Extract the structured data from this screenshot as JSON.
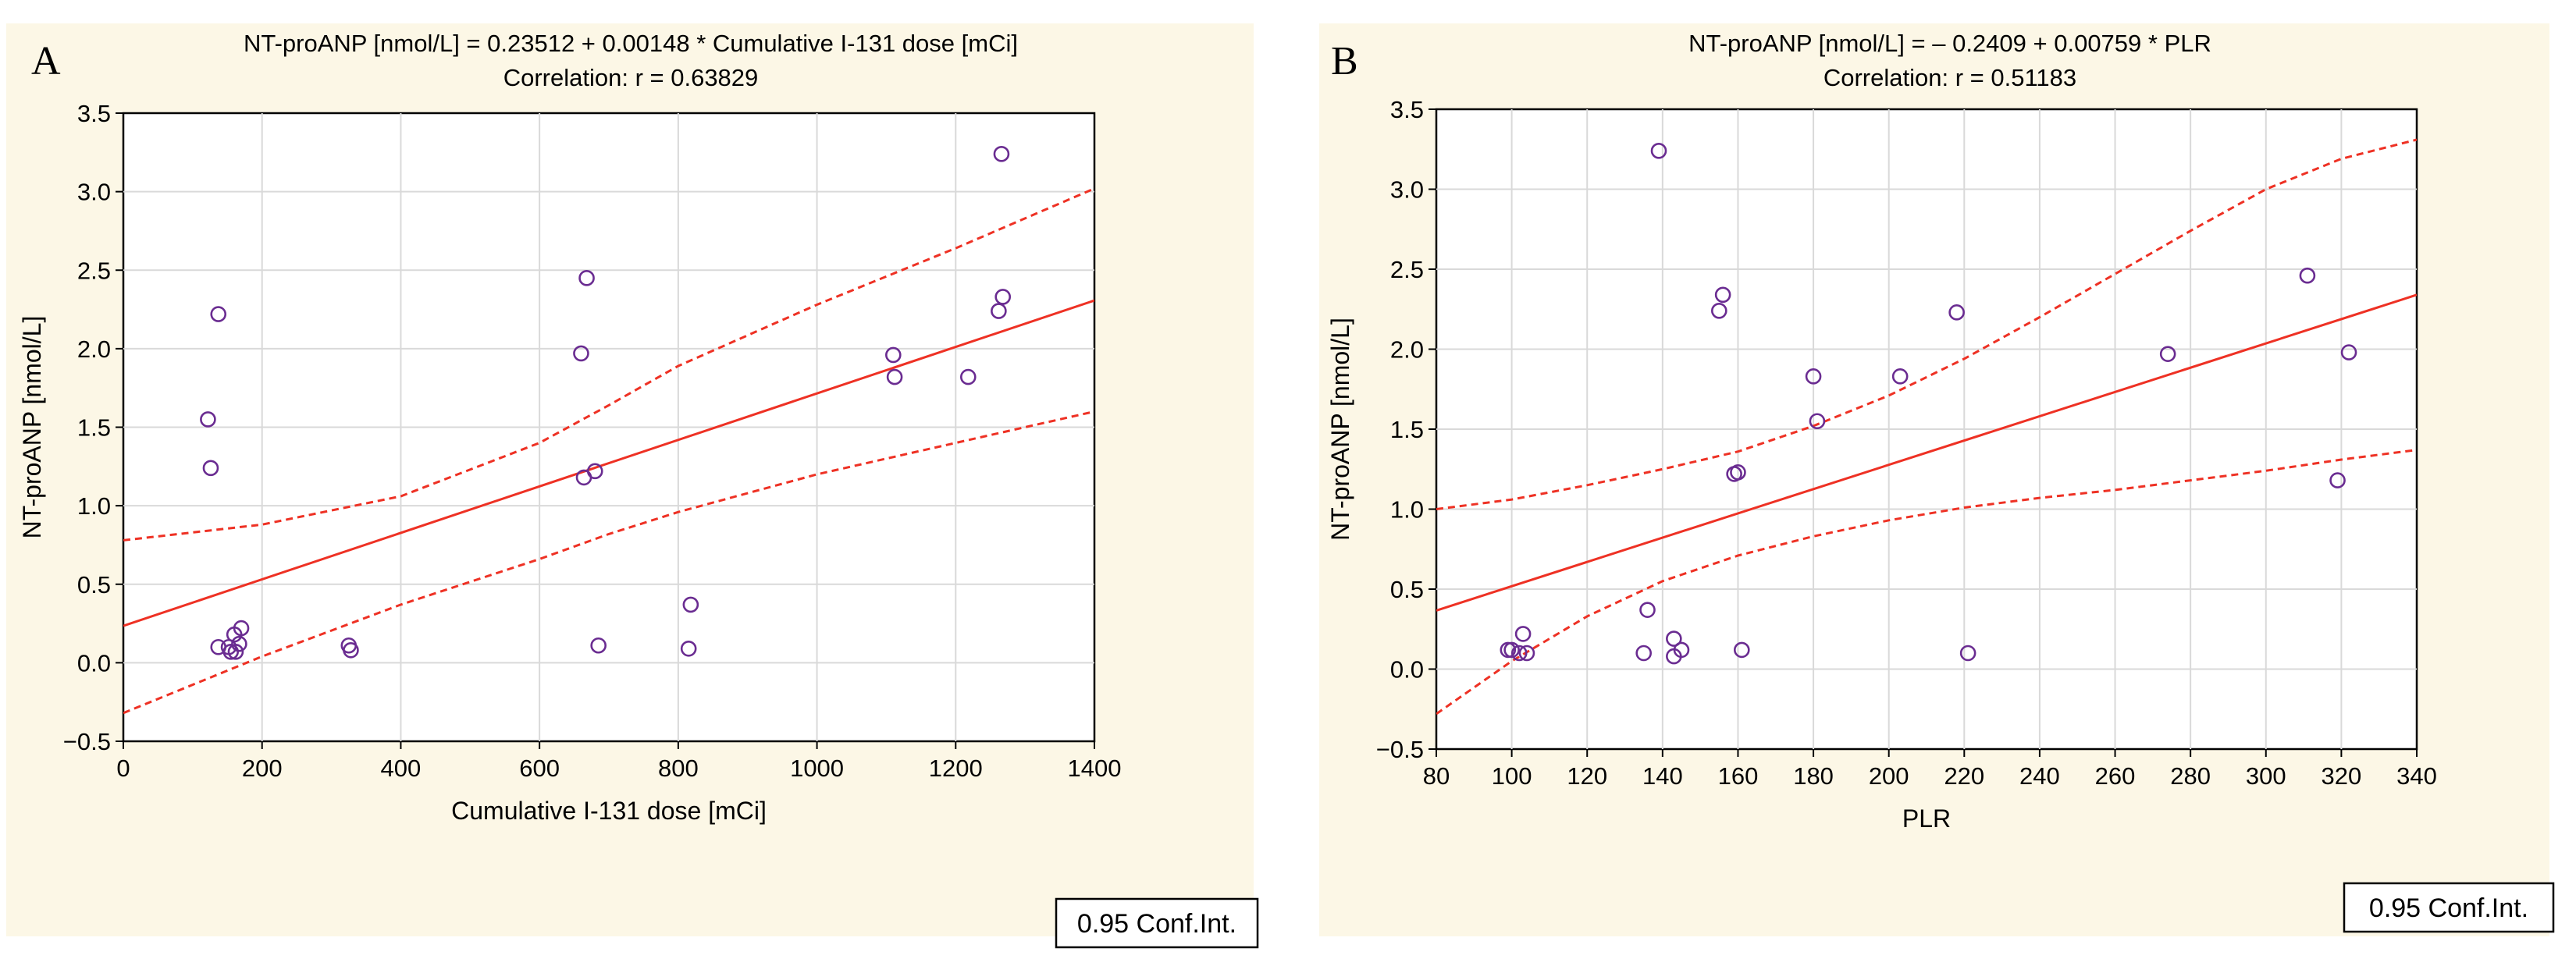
{
  "chart_data": [
    {
      "panel": "A",
      "type": "scatter",
      "title": "NT-proANP [nmol/L] = 0.23512 + 0.00148 * Cumulative I-131 dose [mCi]",
      "subtitle": "Correlation: r = 0.63829",
      "xlabel": "Cumulative I-131 dose [mCi]",
      "ylabel": "NT-proANP [nmol/L]",
      "xlim": [
        0,
        1400
      ],
      "ylim": [
        -0.5,
        3.5
      ],
      "xticks": [
        0,
        200,
        400,
        600,
        800,
        1000,
        1200,
        1400
      ],
      "yticks": [
        -0.5,
        0.0,
        0.5,
        1.0,
        1.5,
        2.0,
        2.5,
        3.0,
        3.5
      ],
      "xtick_labels": [
        "0",
        "200",
        "400",
        "600",
        "800",
        "1000",
        "1200",
        "1400"
      ],
      "ytick_labels": [
        "−0.5",
        "0.0",
        "0.5",
        "1.0",
        "1.5",
        "2.0",
        "2.5",
        "3.0",
        "3.5"
      ],
      "grid": true,
      "legend": "0.95 Conf.Int.",
      "legend_position": "bottom-right",
      "fit": {
        "intercept": 0.23512,
        "slope": 0.00148
      },
      "ci_lower": [
        [
          0,
          -0.32
        ],
        [
          200,
          0.04
        ],
        [
          400,
          0.37
        ],
        [
          600,
          0.66
        ],
        [
          700,
          0.82
        ],
        [
          800,
          0.96
        ],
        [
          1000,
          1.2
        ],
        [
          1200,
          1.4
        ],
        [
          1400,
          1.6
        ]
      ],
      "ci_upper": [
        [
          0,
          0.78
        ],
        [
          200,
          0.88
        ],
        [
          400,
          1.06
        ],
        [
          600,
          1.4
        ],
        [
          700,
          1.64
        ],
        [
          800,
          1.89
        ],
        [
          1000,
          2.28
        ],
        [
          1200,
          2.64
        ],
        [
          1400,
          3.02
        ]
      ],
      "points": [
        [
          122,
          1.55
        ],
        [
          126,
          1.24
        ],
        [
          137,
          2.22
        ],
        [
          137,
          0.1
        ],
        [
          152,
          0.1
        ],
        [
          155,
          0.07
        ],
        [
          160,
          0.18
        ],
        [
          162,
          0.07
        ],
        [
          167,
          0.12
        ],
        [
          170,
          0.22
        ],
        [
          325,
          0.11
        ],
        [
          328,
          0.08
        ],
        [
          660,
          1.97
        ],
        [
          664,
          1.18
        ],
        [
          668,
          2.45
        ],
        [
          680,
          1.22
        ],
        [
          685,
          0.11
        ],
        [
          815,
          0.09
        ],
        [
          818,
          0.37
        ],
        [
          1110,
          1.96
        ],
        [
          1112,
          1.82
        ],
        [
          1218,
          1.82
        ],
        [
          1262,
          2.24
        ],
        [
          1266,
          3.24
        ],
        [
          1268,
          2.33
        ]
      ]
    },
    {
      "panel": "B",
      "type": "scatter",
      "title": "NT-proANP [nmol/L] = – 0.2409 + 0.00759 * PLR",
      "subtitle": "Correlation: r = 0.51183",
      "xlabel": "PLR",
      "ylabel": "NT-proANP [nmol/L]",
      "xlim": [
        80,
        340
      ],
      "ylim": [
        -0.5,
        3.5
      ],
      "xticks": [
        80,
        100,
        120,
        140,
        160,
        180,
        200,
        220,
        240,
        260,
        280,
        300,
        320,
        340
      ],
      "yticks": [
        -0.5,
        0.0,
        0.5,
        1.0,
        1.5,
        2.0,
        2.5,
        3.0,
        3.5
      ],
      "xtick_labels": [
        "80",
        "100",
        "120",
        "140",
        "160",
        "180",
        "200",
        "220",
        "240",
        "260",
        "280",
        "300",
        "320",
        "340"
      ],
      "ytick_labels": [
        "−0.5",
        "0.0",
        "0.5",
        "1.0",
        "1.5",
        "2.0",
        "2.5",
        "3.0",
        "3.5"
      ],
      "grid": true,
      "legend": "0.95 Conf.Int.",
      "legend_position": "bottom-right",
      "fit": {
        "intercept": -0.2409,
        "slope": 0.00759
      },
      "ci_lower": [
        [
          80,
          -0.28
        ],
        [
          100,
          0.05
        ],
        [
          120,
          0.33
        ],
        [
          140,
          0.55
        ],
        [
          160,
          0.71
        ],
        [
          180,
          0.83
        ],
        [
          200,
          0.93
        ],
        [
          220,
          1.01
        ],
        [
          240,
          1.07
        ],
        [
          260,
          1.12
        ],
        [
          280,
          1.18
        ],
        [
          300,
          1.24
        ],
        [
          320,
          1.31
        ],
        [
          340,
          1.37
        ]
      ],
      "ci_upper": [
        [
          80,
          1.0
        ],
        [
          100,
          1.06
        ],
        [
          120,
          1.15
        ],
        [
          140,
          1.25
        ],
        [
          160,
          1.36
        ],
        [
          180,
          1.52
        ],
        [
          200,
          1.71
        ],
        [
          220,
          1.94
        ],
        [
          240,
          2.2
        ],
        [
          260,
          2.47
        ],
        [
          280,
          2.74
        ],
        [
          300,
          3.0
        ],
        [
          320,
          3.19
        ],
        [
          340,
          3.31
        ]
      ],
      "points": [
        [
          99,
          0.12
        ],
        [
          100,
          0.12
        ],
        [
          102,
          0.1
        ],
        [
          103,
          0.22
        ],
        [
          104,
          0.1
        ],
        [
          135,
          0.1
        ],
        [
          136,
          0.37
        ],
        [
          139,
          3.24
        ],
        [
          143,
          0.08
        ],
        [
          143,
          0.19
        ],
        [
          145,
          0.12
        ],
        [
          155,
          2.24
        ],
        [
          156,
          2.34
        ],
        [
          159,
          1.22
        ],
        [
          160,
          1.23
        ],
        [
          161,
          0.12
        ],
        [
          180,
          1.83
        ],
        [
          181,
          1.55
        ],
        [
          203,
          1.83
        ],
        [
          218,
          2.23
        ],
        [
          221,
          0.1
        ],
        [
          274,
          1.97
        ],
        [
          311,
          2.46
        ],
        [
          319,
          1.18
        ],
        [
          322,
          1.98
        ]
      ]
    }
  ]
}
